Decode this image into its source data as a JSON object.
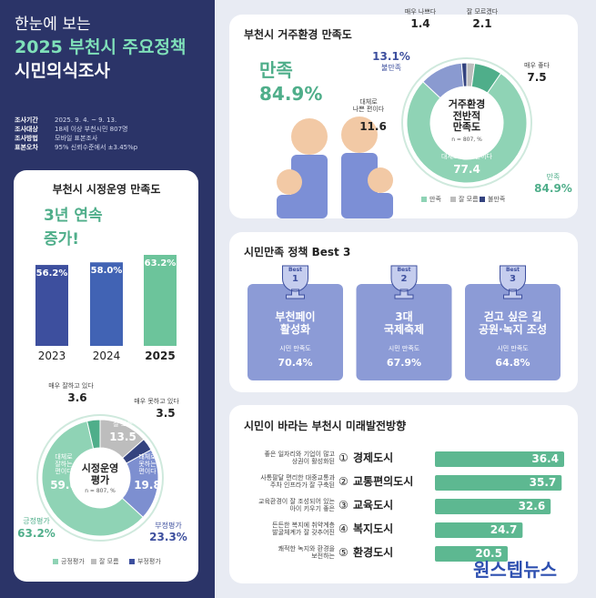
{
  "header": {
    "kicker": "한눈에 보는",
    "title": "2025 부천시 주요정책",
    "subtitle": "시민의식조사"
  },
  "survey": [
    [
      "조사기간",
      "2025. 9. 4. ~ 9. 13."
    ],
    [
      "조사대상",
      "18세 이상 부천시민 807명"
    ],
    [
      "조사방법",
      "모바일 표본조사"
    ],
    [
      "표본오차",
      "95% 신뢰수준에서 ±3.45%p"
    ]
  ],
  "chart_data": [
    {
      "type": "bar",
      "title": "부천시 시정운영 만족도",
      "badge": [
        "3년 연속",
        "증가!"
      ],
      "categories": [
        "2023",
        "2024",
        "2025"
      ],
      "values": [
        56.2,
        58.0,
        63.2
      ],
      "value_labels": [
        "56.2%",
        "58.0%",
        "63.2%"
      ],
      "colors": [
        "#3d4f9e",
        "#4163b4",
        "#6cc49b"
      ]
    },
    {
      "type": "donut",
      "center_title": "시정운영\n평가",
      "note": "n = 807, %",
      "categories": [
        "잘 모름",
        "매우 못하고 있다",
        "대체로\n못하는\n편이다",
        "대체로\n잘하는\n편이다",
        "매우 잘하고 있다"
      ],
      "values": [
        13.5,
        3.5,
        19.8,
        59.6,
        3.6
      ],
      "colors": [
        "#bdbdbd",
        "#34437f",
        "#7d8fd0",
        "#8fd3b5",
        "#4fae8a"
      ],
      "summary": [
        [
          "긍정평가",
          "63.2%"
        ],
        [
          "부정평가",
          "23.3%"
        ]
      ],
      "legend": [
        "긍정평가",
        "잘 모름",
        "부정평가"
      ]
    },
    {
      "type": "donut",
      "title": "부천시 거주환경 만족도",
      "headline": [
        "만족",
        "84.9%"
      ],
      "center_title": "거주환경\n전반적\n만족도",
      "note": "n = 807, %",
      "categories": [
        "잘 모르겠다",
        "매우 좋다",
        "대체로 좋은 편이다",
        "대체로\n나쁜 편이다",
        "매우 나쁘다"
      ],
      "values": [
        2.1,
        7.5,
        77.4,
        11.6,
        1.4
      ],
      "colors": [
        "#bdbdbd",
        "#4fae8a",
        "#8fd3b5",
        "#8a9ad0",
        "#34437f"
      ],
      "summary": [
        [
          "불만족",
          "13.1%"
        ],
        [
          "만족",
          "84.9%"
        ]
      ],
      "legend": [
        "만족",
        "잘 모름",
        "불만족"
      ]
    },
    {
      "type": "hbar",
      "title": "시민이 바라는 부천시 미래발전방향",
      "markers": [
        "①",
        "②",
        "③",
        "④",
        "⑤"
      ],
      "categories": [
        "경제도시",
        "교통편의도시",
        "교육도시",
        "복지도시",
        "환경도시"
      ],
      "descriptions": [
        "좋은 일자리와 기업이 많고\n상권이 활성화된",
        "사통팔달 편리한 대중교통과\n주차 인프라가 잘 구축된",
        "교육환경이 잘 조성되어 있는\n아이 키우기 좋은",
        "든든한 복지에 취약계층\n발굴체계가 잘 갖추어진",
        "쾌적한 녹지와 환경을\n보전하는"
      ],
      "values": [
        36.4,
        35.7,
        32.6,
        24.7,
        20.5
      ],
      "color": "#5db891"
    }
  ],
  "best3": {
    "title": "시민만족 정책 Best 3",
    "items": [
      {
        "badge": "Best",
        "rank": "1",
        "name": "부천페이\n활성화",
        "label": "시민 만족도",
        "value": "70.4%"
      },
      {
        "badge": "Best",
        "rank": "2",
        "name": "3대\n국제축제",
        "label": "시민 만족도",
        "value": "67.9%"
      },
      {
        "badge": "Best",
        "rank": "3",
        "name": "걷고 싶은 길\n공원·녹지 조성",
        "label": "시민 만족도",
        "value": "64.8%"
      }
    ]
  },
  "watermark": "원스텝뉴스"
}
